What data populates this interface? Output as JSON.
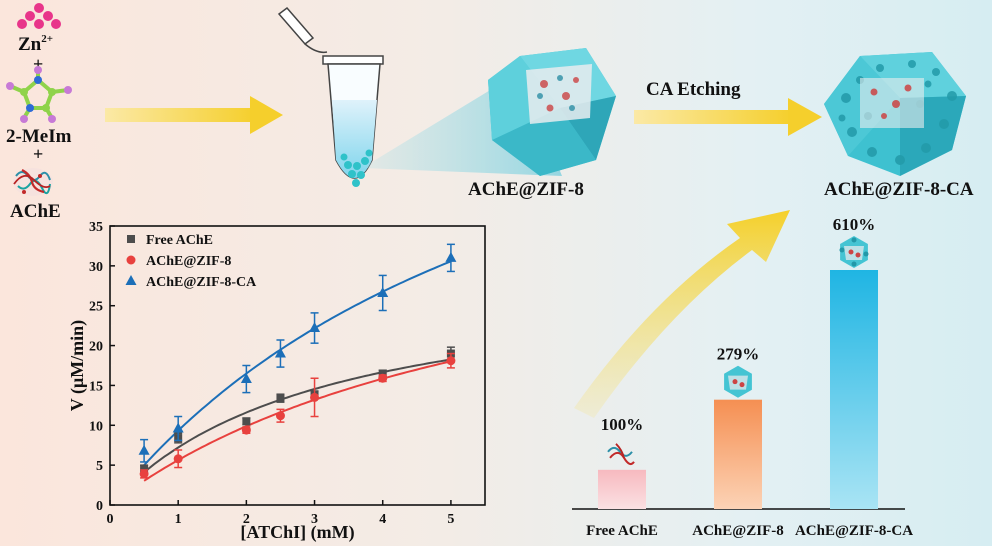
{
  "synthesis": {
    "zn_label": "Zn",
    "zn_charge": "2+",
    "plus1": "+",
    "mim_label": "2-MeIm",
    "plus2": "+",
    "enzyme_label": "AChE",
    "product1_label": "AChE@ZIF-8",
    "etching_label": "CA Etching",
    "product2_label": "AChE@ZIF-8-CA"
  },
  "colors": {
    "free": "#4d4d4d",
    "zif": "#e8413e",
    "zifca": "#1c6fb8",
    "arrow": "#f6d335",
    "crystal": "#47c6d4"
  },
  "chart_data": [
    {
      "type": "scatter",
      "xlabel": "[ATChI] (mM)",
      "ylabel": "V (μM/min)",
      "xlim": [
        0,
        5.5
      ],
      "ylim": [
        0,
        35
      ],
      "xticks": [
        "0",
        "1",
        "2",
        "3",
        "4",
        "5"
      ],
      "yticks": [
        "0",
        "5",
        "10",
        "15",
        "20",
        "25",
        "30",
        "35"
      ],
      "legend_position": "top-left",
      "series": [
        {
          "name": "Free AChE",
          "marker": "square",
          "color": "#4d4d4d",
          "x": [
            0.5,
            1,
            2,
            2.5,
            3,
            4,
            5
          ],
          "y": [
            4.5,
            8.4,
            10.5,
            13.4,
            13.8,
            16.5,
            19.0
          ],
          "err": [
            0.5,
            0.6,
            0.4,
            0.5,
            0.5,
            0.4,
            0.8
          ]
        },
        {
          "name": "AChE@ZIF-8",
          "marker": "circle",
          "color": "#e8413e",
          "x": [
            0.5,
            1,
            2,
            2.5,
            3,
            4,
            5
          ],
          "y": [
            3.9,
            5.8,
            9.4,
            11.2,
            13.5,
            15.9,
            18.1
          ],
          "err": [
            0.5,
            1.1,
            0.4,
            0.8,
            2.4,
            0.4,
            0.9
          ]
        },
        {
          "name": "AChE@ZIF-8-CA",
          "marker": "triangle",
          "color": "#1c6fb8",
          "x": [
            0.5,
            1,
            2,
            2.5,
            3,
            4,
            5
          ],
          "y": [
            6.8,
            9.6,
            15.8,
            19.0,
            22.2,
            26.6,
            31.0
          ],
          "err": [
            1.4,
            1.5,
            1.7,
            1.7,
            1.9,
            2.2,
            1.7
          ]
        }
      ]
    },
    {
      "type": "bar",
      "categories": [
        "Free AChE",
        "AChE@ZIF-8",
        "AChE@ZIF-8-CA"
      ],
      "values": [
        100,
        279,
        610
      ],
      "labels": [
        "100%",
        "279%",
        "610%"
      ],
      "colors": [
        "#f6c1c4",
        "#f59a5e",
        "#27bde6"
      ]
    }
  ]
}
